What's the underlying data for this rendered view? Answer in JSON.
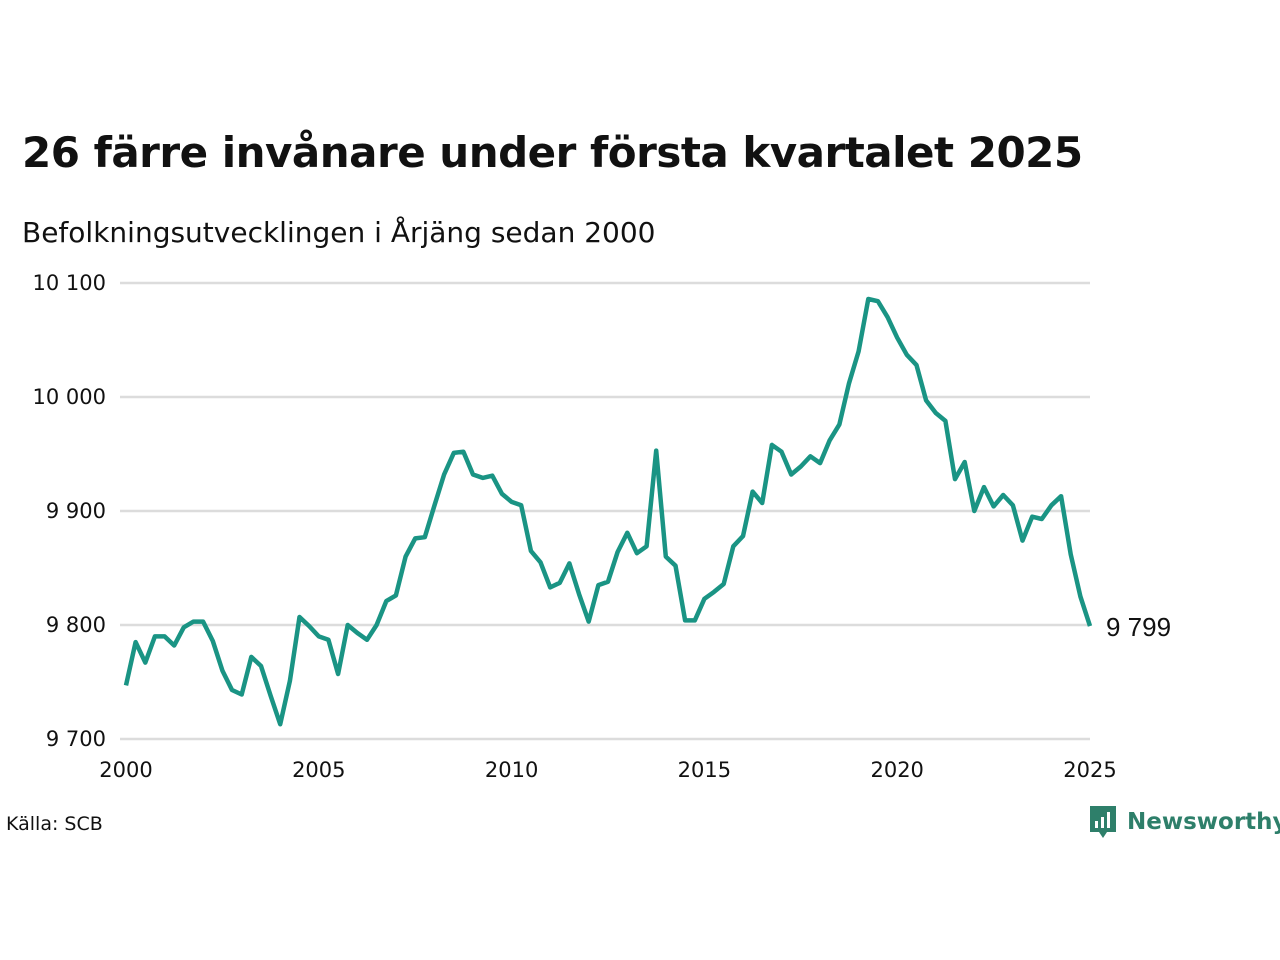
{
  "header": {
    "title": "26 färre invånare under första kvartalet 2025",
    "subtitle": "Befolkningsutvecklingen i Årjäng sedan 2000"
  },
  "footer": {
    "source": "Källa: SCB",
    "brand": "Newsworthy"
  },
  "colors": {
    "line": "#1a9484",
    "grid": "#dcdcdc",
    "brand": "#2e7f6a"
  },
  "icons": {
    "brand_logo": "newsworthy-chart-bubble-icon"
  },
  "chart_data": {
    "type": "line",
    "title": "26 färre invånare under första kvartalet 2025",
    "subtitle": "Befolkningsutvecklingen i Årjäng sedan 2000",
    "xlabel": "",
    "ylabel": "",
    "xlim": [
      2000,
      2025
    ],
    "ylim": [
      9700,
      10100
    ],
    "x_ticks": [
      2000,
      2005,
      2010,
      2015,
      2020,
      2025
    ],
    "x_tick_labels": [
      "2000",
      "2005",
      "2010",
      "2015",
      "2020",
      "2025"
    ],
    "y_ticks": [
      9700,
      9800,
      9900,
      10000,
      10100
    ],
    "y_tick_labels": [
      "9 700",
      "9 800",
      "9 900",
      "10 000",
      "10 100"
    ],
    "grid": "horizontal",
    "end_label": "9 799",
    "series": [
      {
        "x": [
          2000.0,
          2000.25,
          2000.5,
          2000.75,
          2001.0,
          2001.25,
          2001.5,
          2001.75,
          2002.0,
          2002.25,
          2002.5,
          2002.75,
          2003.0,
          2003.25,
          2003.5,
          2003.75,
          2004.0,
          2004.25,
          2004.5,
          2004.75,
          2005.0,
          2005.25,
          2005.5,
          2005.75,
          2006.0,
          2006.25,
          2006.5,
          2006.75,
          2007.0,
          2007.25,
          2007.5,
          2007.75,
          2008.0,
          2008.25,
          2008.5,
          2008.75,
          2009.0,
          2009.25,
          2009.5,
          2009.75,
          2010.0,
          2010.25,
          2010.5,
          2010.75,
          2011.0,
          2011.25,
          2011.5,
          2011.75,
          2012.0,
          2012.25,
          2012.5,
          2012.75,
          2013.0,
          2013.25,
          2013.5,
          2013.75,
          2014.0,
          2014.25,
          2014.5,
          2014.75,
          2015.0,
          2015.25,
          2015.5,
          2015.75,
          2016.0,
          2016.25,
          2016.5,
          2016.75,
          2017.0,
          2017.25,
          2017.5,
          2017.75,
          2018.0,
          2018.25,
          2018.5,
          2018.75,
          2019.0,
          2019.25,
          2019.5,
          2019.75,
          2020.0,
          2020.25,
          2020.5,
          2020.75,
          2021.0,
          2021.25,
          2021.5,
          2021.75,
          2022.0,
          2022.25,
          2022.5,
          2022.75,
          2023.0,
          2023.25,
          2023.5,
          2023.75,
          2024.0,
          2024.25,
          2024.5,
          2024.75,
          2025.0
        ],
        "values": [
          9747,
          9785,
          9767,
          9790,
          9790,
          9782,
          9798,
          9803,
          9803,
          9786,
          9760,
          9743,
          9739,
          9772,
          9764,
          9738,
          9713,
          9751,
          9807,
          9799,
          9790,
          9787,
          9757,
          9800,
          9793,
          9787,
          9800,
          9821,
          9826,
          9860,
          9876,
          9877,
          9905,
          9932,
          9951,
          9952,
          9932,
          9929,
          9931,
          9915,
          9908,
          9905,
          9865,
          9855,
          9833,
          9837,
          9854,
          9827,
          9803,
          9835,
          9838,
          9864,
          9881,
          9863,
          9869,
          9953,
          9860,
          9852,
          9804,
          9804,
          9823,
          9829,
          9836,
          9869,
          9878,
          9917,
          9907,
          9958,
          9952,
          9932,
          9939,
          9948,
          9942,
          9962,
          9976,
          10012,
          10040,
          10086,
          10084,
          10070,
          10052,
          10037,
          10028,
          9997,
          9986,
          9979,
          9928,
          9943,
          9900,
          9921,
          9904,
          9914,
          9905,
          9874,
          9895,
          9893,
          9905,
          9913,
          9862,
          9825,
          9799
        ]
      }
    ]
  }
}
